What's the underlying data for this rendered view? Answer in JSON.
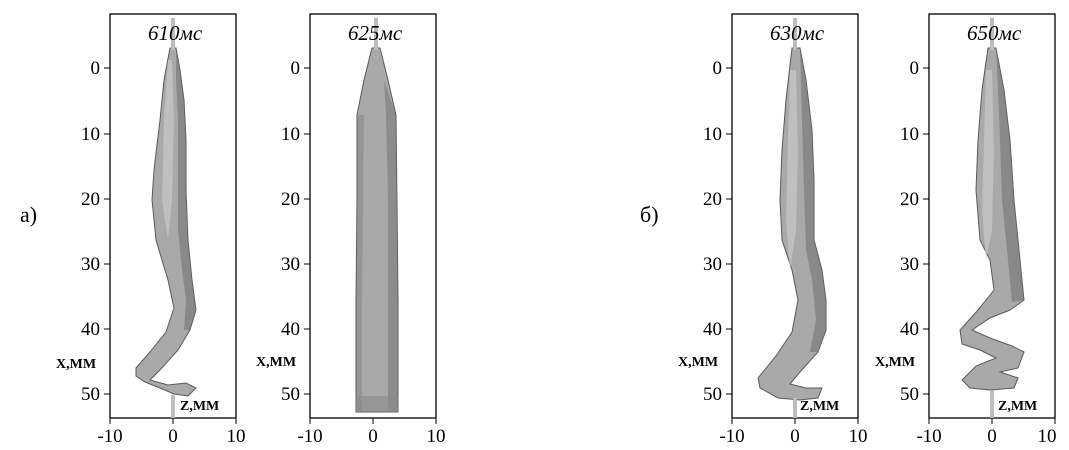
{
  "figure": {
    "parts": [
      {
        "label": "а)",
        "panels": [
          {
            "time": "610мс",
            "x_axis_label": "X,ММ",
            "z_axis_label": "Z,ММ",
            "y_ticks": [
              "0",
              "10",
              "20",
              "30",
              "40",
              "50"
            ],
            "z_ticks": [
              "-10",
              "0",
              "10"
            ]
          },
          {
            "time": "625мс",
            "x_axis_label": "X,ММ",
            "z_axis_label": "",
            "y_ticks": [
              "0",
              "10",
              "20",
              "30",
              "40",
              "50"
            ],
            "z_ticks": [
              "-10",
              "0",
              "10"
            ]
          }
        ]
      },
      {
        "label": "б)",
        "panels": [
          {
            "time": "630мс",
            "x_axis_label": "X,ММ",
            "z_axis_label": "Z,ММ",
            "y_ticks": [
              "0",
              "10",
              "20",
              "30",
              "40",
              "50"
            ],
            "z_ticks": [
              "-10",
              "0",
              "10"
            ]
          },
          {
            "time": "650мс",
            "x_axis_label": "X,ММ",
            "z_axis_label": "Z,ММ",
            "y_ticks": [
              "0",
              "10",
              "20",
              "30",
              "40",
              "50"
            ],
            "z_ticks": [
              "-10",
              "0",
              "10"
            ]
          }
        ]
      }
    ]
  },
  "colors": {
    "jet_fill": "#a9a9a9",
    "jet_shadow": "#6f6f6f",
    "jet_highlight": "#c4c4c4",
    "axis": "#000000"
  }
}
